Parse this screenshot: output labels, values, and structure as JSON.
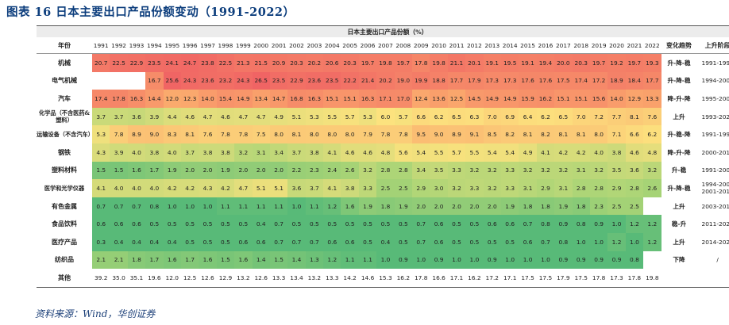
{
  "title": "图表 16   日本主要出口产品份额变动（1991-2022）",
  "caption": "日本主要出口产品份额（%）",
  "headers": {
    "category": "年份",
    "trend": "变化趋势",
    "stage": "上升阶段"
  },
  "years": [
    "1991",
    "1992",
    "1993",
    "1994",
    "1995",
    "1996",
    "1997",
    "1998",
    "1999",
    "2000",
    "2001",
    "2002",
    "2003",
    "2004",
    "2005",
    "2006",
    "2007",
    "2008",
    "2009",
    "2010",
    "2011",
    "2012",
    "2013",
    "2014",
    "2015",
    "2016",
    "2017",
    "2018",
    "2019",
    "2020",
    "2021",
    "2022"
  ],
  "rows": [
    {
      "label": "机械",
      "values": [
        "20.7",
        "22.5",
        "22.9",
        "23.5",
        "24.1",
        "24.7",
        "23.8",
        "22.5",
        "21.3",
        "21.5",
        "20.9",
        "20.3",
        "20.2",
        "20.6",
        "20.3",
        "19.7",
        "19.8",
        "19.7",
        "17.8",
        "19.8",
        "21.1",
        "20.1",
        "19.1",
        "19.5",
        "19.1",
        "19.4",
        "20.0",
        "20.3",
        "19.7",
        "19.2",
        "19.7",
        "19.3"
      ],
      "trend": "升-降-稳",
      "stage": "1991-1996"
    },
    {
      "label": "电气机械",
      "values": [
        "",
        "",
        "",
        "16.7",
        "25.6",
        "24.3",
        "23.6",
        "23.2",
        "24.3",
        "26.5",
        "23.5",
        "22.9",
        "23.6",
        "23.5",
        "22.2",
        "21.4",
        "20.2",
        "19.0",
        "19.9",
        "18.8",
        "17.7",
        "17.9",
        "17.3",
        "17.3",
        "17.6",
        "17.6",
        "17.5",
        "17.4",
        "17.2",
        "18.9",
        "18.4",
        "17.7"
      ],
      "trend": "升-降-稳",
      "stage": "1994-2000"
    },
    {
      "label": "汽车",
      "values": [
        "17.4",
        "17.8",
        "16.3",
        "14.4",
        "12.0",
        "12.3",
        "14.0",
        "15.4",
        "14.9",
        "13.4",
        "14.7",
        "16.8",
        "16.3",
        "15.1",
        "15.1",
        "16.3",
        "17.1",
        "17.0",
        "12.4",
        "13.6",
        "12.5",
        "14.5",
        "14.9",
        "14.9",
        "15.9",
        "16.2",
        "15.1",
        "15.1",
        "15.6",
        "14.0",
        "12.9",
        "13.3"
      ],
      "trend": "降-升-降",
      "stage": "1995-2007"
    },
    {
      "label": "化学品（不含医药&塑料）",
      "values": [
        "3.7",
        "3.7",
        "3.6",
        "3.9",
        "4.4",
        "4.6",
        "4.7",
        "4.6",
        "4.7",
        "4.7",
        "4.9",
        "5.1",
        "5.3",
        "5.5",
        "5.7",
        "5.3",
        "6.0",
        "5.7",
        "6.6",
        "6.2",
        "6.5",
        "6.3",
        "7.0",
        "6.9",
        "6.4",
        "6.2",
        "6.5",
        "7.0",
        "7.2",
        "7.7",
        "8.1",
        "7.6"
      ],
      "trend": "上升",
      "stage": "1993-2021"
    },
    {
      "label": "运输设备（不含汽车）",
      "values": [
        "5.3",
        "7.8",
        "8.9",
        "9.0",
        "8.3",
        "8.1",
        "7.6",
        "7.8",
        "7.8",
        "7.5",
        "8.0",
        "8.1",
        "8.0",
        "8.0",
        "8.0",
        "7.9",
        "7.8",
        "7.8",
        "9.5",
        "9.0",
        "8.9",
        "9.1",
        "8.5",
        "8.2",
        "8.1",
        "8.2",
        "8.1",
        "8.1",
        "8.0",
        "7.1",
        "6.6",
        "6.2"
      ],
      "trend": "升-稳-降",
      "stage": "1991-1994"
    },
    {
      "label": "钢铁",
      "values": [
        "4.3",
        "3.9",
        "4.0",
        "3.8",
        "4.0",
        "3.7",
        "3.8",
        "3.8",
        "3.2",
        "3.1",
        "3.4",
        "3.7",
        "3.8",
        "4.1",
        "4.6",
        "4.6",
        "4.8",
        "5.6",
        "5.4",
        "5.5",
        "5.7",
        "5.5",
        "5.4",
        "5.4",
        "4.9",
        "4.1",
        "4.2",
        "4.2",
        "4.0",
        "3.8",
        "4.6",
        "4.8"
      ],
      "trend": "降-升-降",
      "stage": "2000-2011"
    },
    {
      "label": "塑料材料",
      "values": [
        "1.5",
        "1.5",
        "1.6",
        "1.7",
        "1.9",
        "2.0",
        "2.0",
        "1.9",
        "2.0",
        "2.0",
        "2.0",
        "2.2",
        "2.3",
        "2.4",
        "2.6",
        "3.2",
        "2.8",
        "2.8",
        "3.4",
        "3.5",
        "3.3",
        "3.2",
        "3.2",
        "3.3",
        "3.2",
        "3.2",
        "3.2",
        "3.1",
        "3.2",
        "3.5",
        "3.6",
        "3.2"
      ],
      "trend": "升-稳",
      "stage": "1991-2006"
    },
    {
      "label": "医学和光学仪器",
      "values": [
        "4.1",
        "4.0",
        "4.0",
        "4.0",
        "4.2",
        "4.2",
        "4.3",
        "4.2",
        "4.7",
        "5.1",
        "5.1",
        "3.6",
        "3.7",
        "4.1",
        "3.8",
        "3.3",
        "2.5",
        "2.5",
        "2.9",
        "3.0",
        "3.2",
        "3.3",
        "3.2",
        "3.3",
        "3.1",
        "2.9",
        "3.1",
        "2.8",
        "2.8",
        "2.9",
        "2.8",
        "2.6"
      ],
      "trend": "升-降-稳",
      "stage": "1994-2000 2001-2012"
    },
    {
      "label": "有色金属",
      "values": [
        "0.7",
        "0.7",
        "0.7",
        "0.8",
        "1.0",
        "1.0",
        "1.0",
        "1.1",
        "1.1",
        "1.1",
        "1.1",
        "1.0",
        "1.1",
        "1.2",
        "1.6",
        "1.9",
        "1.8",
        "1.9",
        "2.0",
        "2.0",
        "2.0",
        "2.0",
        "2.0",
        "1.9",
        "1.8",
        "1.8",
        "1.9",
        "1.8",
        "2.3",
        "2.5",
        "2.5",
        ""
      ],
      "trend": "上升",
      "stage": "2003-2010"
    },
    {
      "label": "食品饮料",
      "values": [
        "0.6",
        "0.6",
        "0.6",
        "0.5",
        "0.5",
        "0.5",
        "0.5",
        "0.5",
        "0.5",
        "0.4",
        "0.7",
        "0.5",
        "0.5",
        "0.5",
        "0.5",
        "0.5",
        "0.5",
        "0.5",
        "0.7",
        "0.6",
        "0.5",
        "0.5",
        "0.6",
        "0.6",
        "0.7",
        "0.8",
        "0.9",
        "0.8",
        "0.9",
        "1.0",
        "1.2",
        "1.2"
      ],
      "trend": "稳-升",
      "stage": "2011-2020"
    },
    {
      "label": "医疗产品",
      "values": [
        "0.3",
        "0.4",
        "0.4",
        "0.4",
        "0.4",
        "0.5",
        "0.5",
        "0.5",
        "0.6",
        "0.6",
        "0.7",
        "0.7",
        "0.7",
        "0.6",
        "0.6",
        "0.5",
        "0.4",
        "0.5",
        "0.7",
        "0.6",
        "0.5",
        "0.5",
        "0.5",
        "0.5",
        "0.6",
        "0.7",
        "0.8",
        "1.0",
        "1.0",
        "1.2",
        "1.0",
        "1.2"
      ],
      "trend": "上升",
      "stage": "2014-2020"
    },
    {
      "label": "纺织品",
      "values": [
        "2.1",
        "2.1",
        "1.8",
        "1.7",
        "1.6",
        "1.7",
        "1.6",
        "1.5",
        "1.6",
        "1.4",
        "1.5",
        "1.4",
        "1.3",
        "1.2",
        "1.1",
        "1.1",
        "1.0",
        "0.9",
        "1.0",
        "0.9",
        "1.0",
        "1.0",
        "0.9",
        "1.0",
        "1.0",
        "1.0",
        "0.9",
        "0.9",
        "0.9",
        "0.9",
        "0.8",
        ""
      ],
      "trend": "下降",
      "stage": "/"
    },
    {
      "label": "其他",
      "values": [
        "39.2",
        "35.0",
        "35.1",
        "19.6",
        "12.0",
        "12.5",
        "12.6",
        "12.9",
        "13.2",
        "12.6",
        "13.3",
        "13.4",
        "13.2",
        "13.3",
        "14.2",
        "14.6",
        "15.3",
        "16.2",
        "17.8",
        "16.6",
        "17.1",
        "16.2",
        "17.2",
        "17.1",
        "17.5",
        "17.5",
        "17.9",
        "17.5",
        "17.8",
        "17.3",
        "17.8",
        "19.8"
      ],
      "trend": "",
      "stage": ""
    }
  ],
  "source": "资料来源：Wind，华创证券"
}
